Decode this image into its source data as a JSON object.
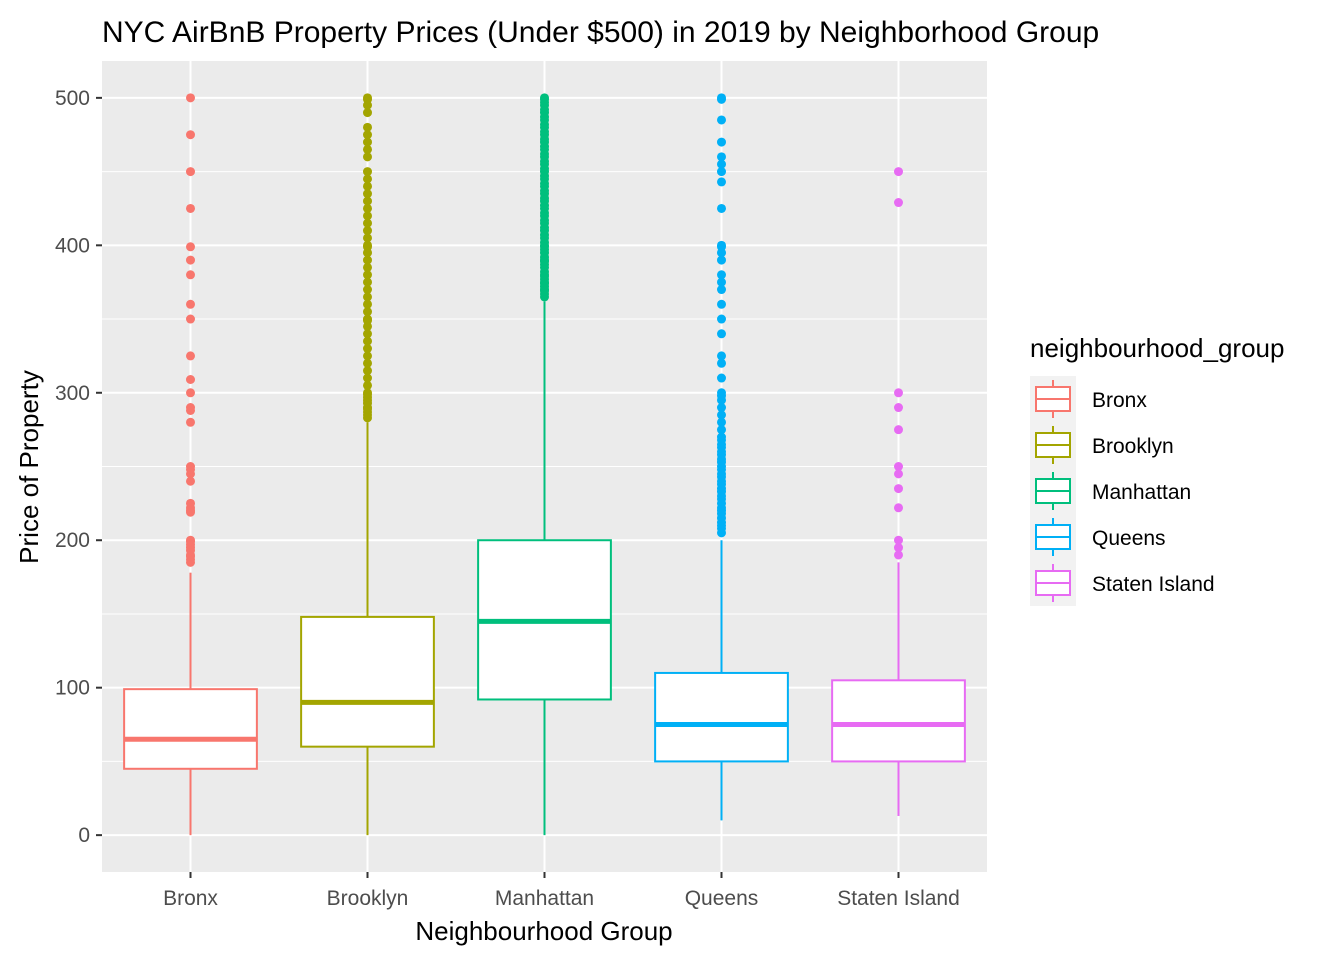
{
  "chart_data": {
    "type": "box",
    "title": "NYC AirBnB Property Prices (Under $500) in 2019 by Neighborhood Group",
    "xlabel": "Neighbourhood Group",
    "ylabel": "Price of Property",
    "ylim": [
      -25,
      525
    ],
    "yticks": [
      0,
      100,
      200,
      300,
      400,
      500
    ],
    "grid": true,
    "legend": {
      "title": "neighbourhood_group",
      "position": "right",
      "entries": [
        "Bronx",
        "Brooklyn",
        "Manhattan",
        "Queens",
        "Staten Island"
      ]
    },
    "categories": [
      "Bronx",
      "Brooklyn",
      "Manhattan",
      "Queens",
      "Staten Island"
    ],
    "series": [
      {
        "name": "Bronx",
        "color": "#F8766D",
        "whisker_low": 0,
        "q1": 45,
        "median": 65,
        "q3": 99,
        "whisker_high": 178,
        "outliers": [
          185,
          187,
          189,
          190,
          193,
          195,
          197,
          199,
          200,
          219,
          220,
          222,
          225,
          240,
          245,
          248,
          250,
          280,
          288,
          290,
          300,
          309,
          325,
          350,
          360,
          380,
          390,
          399,
          425,
          450,
          475,
          500
        ]
      },
      {
        "name": "Brooklyn",
        "color": "#A3A500",
        "whisker_low": 0,
        "q1": 60,
        "median": 90,
        "q3": 148,
        "whisker_high": 280,
        "outliers": [
          283,
          285,
          287,
          289,
          290,
          293,
          295,
          297,
          299,
          300,
          305,
          310,
          315,
          320,
          325,
          330,
          335,
          340,
          345,
          349,
          350,
          355,
          360,
          365,
          370,
          375,
          380,
          385,
          390,
          395,
          399,
          400,
          405,
          410,
          415,
          420,
          425,
          430,
          435,
          440,
          445,
          450,
          460,
          465,
          470,
          475,
          480,
          490,
          495,
          499,
          500
        ]
      },
      {
        "name": "Manhattan",
        "color": "#00BF7D",
        "whisker_low": 0,
        "q1": 92,
        "median": 145,
        "q3": 200,
        "whisker_high": 362,
        "outliers": [
          365,
          367,
          369,
          370,
          372,
          374,
          375,
          377,
          379,
          380,
          382,
          385,
          387,
          389,
          390,
          392,
          395,
          397,
          399,
          400,
          402,
          405,
          407,
          410,
          412,
          415,
          417,
          420,
          422,
          425,
          427,
          430,
          432,
          435,
          437,
          440,
          442,
          445,
          447,
          450,
          452,
          455,
          457,
          460,
          462,
          465,
          467,
          470,
          472,
          475,
          477,
          480,
          482,
          485,
          487,
          490,
          492,
          495,
          497,
          499,
          500
        ]
      },
      {
        "name": "Queens",
        "color": "#00B0F6",
        "whisker_low": 10,
        "q1": 50,
        "median": 75,
        "q3": 110,
        "whisker_high": 200,
        "outliers": [
          205,
          208,
          210,
          212,
          215,
          218,
          220,
          222,
          225,
          228,
          230,
          233,
          235,
          238,
          240,
          243,
          245,
          248,
          250,
          253,
          255,
          258,
          260,
          263,
          265,
          268,
          270,
          275,
          280,
          285,
          290,
          295,
          298,
          300,
          310,
          320,
          325,
          340,
          350,
          360,
          370,
          375,
          380,
          390,
          395,
          399,
          400,
          425,
          443,
          450,
          455,
          460,
          470,
          485,
          499,
          500
        ]
      },
      {
        "name": "Staten Island",
        "color": "#E76BF3",
        "whisker_low": 13,
        "q1": 50,
        "median": 75,
        "q3": 105,
        "whisker_high": 185,
        "outliers": [
          190,
          195,
          200,
          222,
          235,
          245,
          250,
          275,
          290,
          300,
          429,
          450
        ]
      }
    ]
  }
}
